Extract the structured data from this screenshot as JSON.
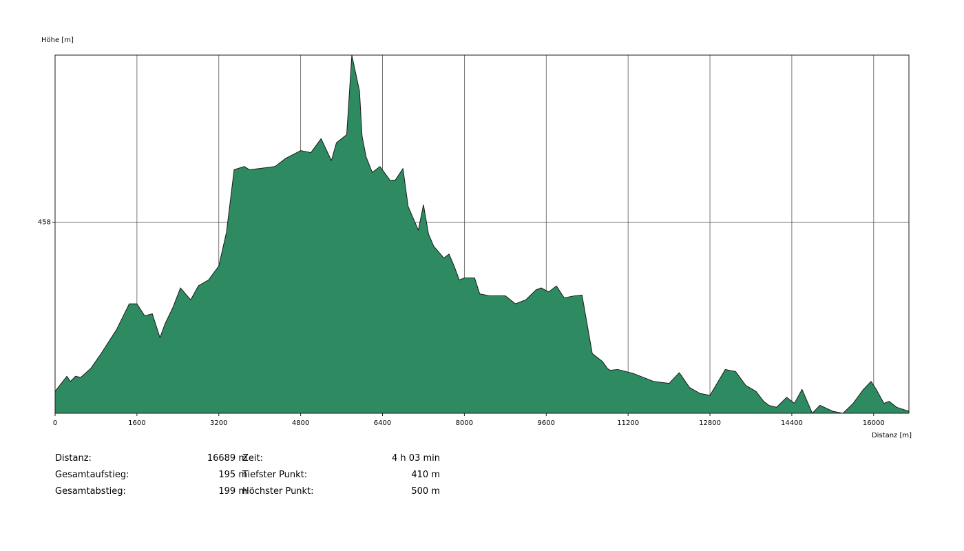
{
  "chart_data": {
    "type": "area",
    "ylabel": "Höhe [m]",
    "xlabel": "Distanz [m]",
    "xlim": [
      0,
      16689
    ],
    "ylim": [
      410,
      500
    ],
    "x_ticks": [
      0,
      1600,
      3200,
      4800,
      6400,
      8000,
      9600,
      11200,
      12800,
      14400,
      16000
    ],
    "y_ticks": [
      458
    ],
    "grid": true,
    "fill_color": "#2e8b61",
    "line_color": "#1a1a1a",
    "grid_color": "#555555",
    "x": [
      0,
      230,
      300,
      400,
      500,
      700,
      900,
      1200,
      1450,
      1600,
      1750,
      1900,
      2050,
      2150,
      2300,
      2450,
      2650,
      2800,
      3000,
      3200,
      3350,
      3500,
      3700,
      3800,
      4000,
      4300,
      4500,
      4800,
      5000,
      5200,
      5400,
      5500,
      5700,
      5800,
      5950,
      6000,
      6080,
      6200,
      6350,
      6550,
      6650,
      6800,
      6900,
      7100,
      7200,
      7300,
      7400,
      7600,
      7700,
      7800,
      7900,
      8000,
      8200,
      8300,
      8500,
      8800,
      9000,
      9200,
      9400,
      9500,
      9650,
      9800,
      9950,
      10150,
      10300,
      10500,
      10700,
      10800,
      10850,
      11000,
      11300,
      11700,
      12000,
      12200,
      12400,
      12600,
      12800,
      13100,
      13300,
      13500,
      13700,
      13850,
      13950,
      14100,
      14300,
      14450,
      14600,
      14800,
      14950,
      15200,
      15400,
      15600,
      15800,
      15950,
      16050,
      16200,
      16300,
      16450,
      16689
    ],
    "values": [
      415.5,
      419.3,
      418.0,
      419.3,
      419.0,
      421.3,
      425.0,
      431.0,
      437.5,
      437.5,
      434.5,
      435.0,
      429.0,
      432.5,
      436.5,
      441.5,
      438.5,
      442.0,
      443.5,
      447.0,
      455.5,
      471.2,
      472.0,
      471.2,
      471.5,
      472.0,
      474.0,
      476.0,
      475.5,
      479.0,
      473.5,
      478.0,
      480.0,
      500.0,
      491.0,
      479.7,
      474.4,
      470.5,
      472.0,
      468.5,
      468.6,
      471.5,
      462.0,
      456.0,
      462.4,
      455.0,
      452.0,
      449.0,
      450.0,
      447.0,
      443.5,
      444.0,
      444.0,
      440.0,
      439.5,
      439.5,
      437.5,
      438.5,
      441.0,
      441.5,
      440.5,
      442.0,
      439.0,
      439.5,
      439.7,
      425.0,
      423.0,
      421.2,
      420.8,
      421.0,
      420.0,
      418.0,
      417.5,
      420.2,
      416.5,
      415.0,
      414.5,
      421.0,
      420.5,
      417.0,
      415.5,
      413.0,
      412.0,
      411.5,
      414.0,
      412.5,
      416.0,
      410.0,
      412.0,
      410.5,
      410.0,
      412.5,
      416.0,
      418.0,
      416.0,
      412.5,
      413.0,
      411.5,
      410.5
    ],
    "stats": {
      "rows": [
        {
          "label1": "Distanz:",
          "value1": "16689 m",
          "label2": "Zeit:",
          "value2": "4 h 03 min"
        },
        {
          "label1": "Gesamtaufstieg:",
          "value1": "195 m",
          "label2": "Tiefster Punkt:",
          "value2": "410 m"
        },
        {
          "label1": "Gesamtabstieg:",
          "value1": "199 m",
          "label2": "Höchster Punkt:",
          "value2": "500 m"
        }
      ]
    }
  }
}
